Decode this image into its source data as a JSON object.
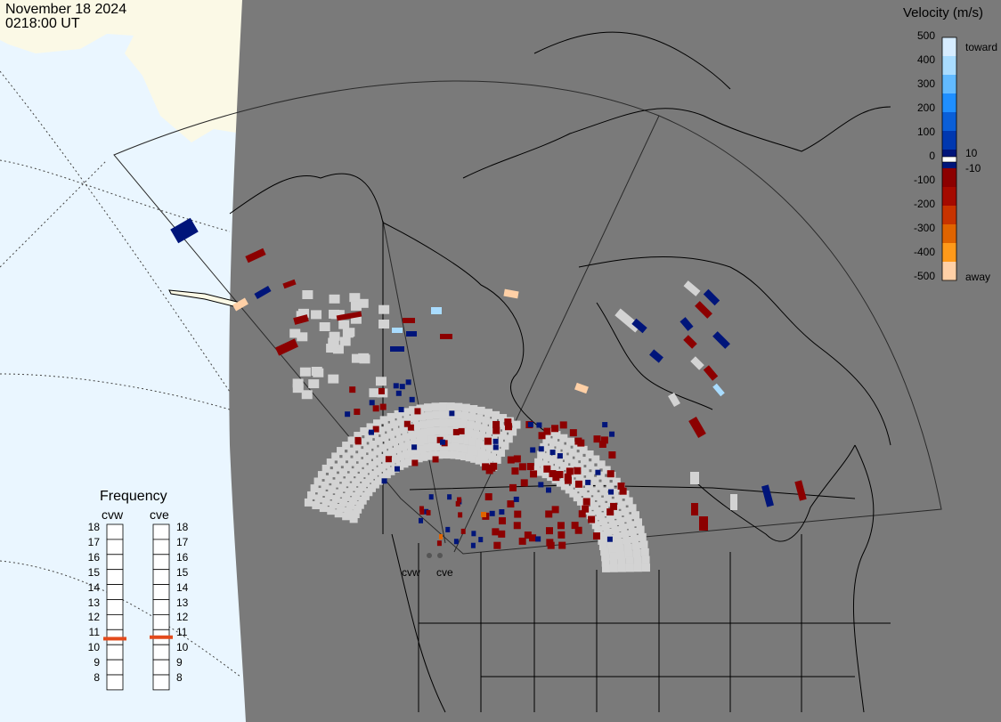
{
  "header": {
    "date": "November 18 2024",
    "time": "0218:00 UT"
  },
  "legend": {
    "title": "Velocity (m/s)",
    "ticks": [
      "500",
      "400",
      "300",
      "200",
      "100",
      "0",
      "-100",
      "-200",
      "-300",
      "-400",
      "-500"
    ],
    "labels": {
      "toward": "toward",
      "away": "away",
      "pos_min": "10",
      "neg_min": "-10"
    },
    "colors": [
      "#d6ecff",
      "#a9dcff",
      "#62baff",
      "#1f8fff",
      "#0a5fd8",
      "#0038b0",
      "#00157a",
      "#8c0000",
      "#a50a00",
      "#c83300",
      "#e06400",
      "#ff9a1a",
      "#ffd0a6"
    ]
  },
  "frequency": {
    "title": "Frequency",
    "radars": [
      "cvw",
      "cve"
    ],
    "scale": [
      "18",
      "17",
      "16",
      "15",
      "14",
      "13",
      "12",
      "11",
      "10",
      "9",
      "8"
    ],
    "values_mhz": [
      10.9,
      11.0
    ]
  },
  "map": {
    "radar_sites": [
      "cvw",
      "cve"
    ],
    "colors": {
      "ocean": "#eaf6ff",
      "land_outside": "#fbf9e6",
      "night": "#7a7a7a",
      "gs": "#d3d3d3"
    }
  }
}
